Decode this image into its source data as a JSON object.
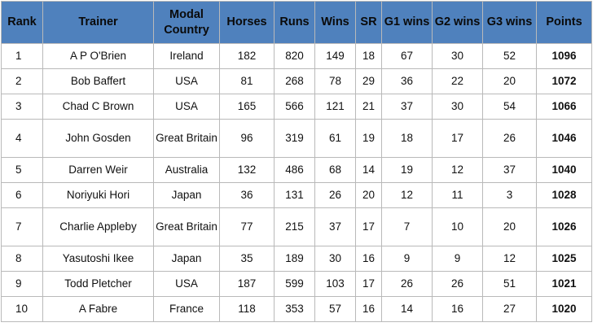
{
  "table": {
    "headers": {
      "rank": "Rank",
      "trainer": "Trainer",
      "country": "Modal Country",
      "horses": "Horses",
      "runs": "Runs",
      "wins": "Wins",
      "sr": "SR",
      "g1": "G1 wins",
      "g2": "G2 wins",
      "g3": "G3 wins",
      "points": "Points"
    },
    "rows": [
      {
        "rank": "1",
        "trainer": "A P O'Brien",
        "country": "Ireland",
        "horses": "182",
        "runs": "820",
        "wins": "149",
        "sr": "18",
        "g1": "67",
        "g2": "30",
        "g3": "52",
        "points": "1096"
      },
      {
        "rank": "2",
        "trainer": "Bob Baffert",
        "country": "USA",
        "horses": "81",
        "runs": "268",
        "wins": "78",
        "sr": "29",
        "g1": "36",
        "g2": "22",
        "g3": "20",
        "points": "1072"
      },
      {
        "rank": "3",
        "trainer": "Chad C Brown",
        "country": "USA",
        "horses": "165",
        "runs": "566",
        "wins": "121",
        "sr": "21",
        "g1": "37",
        "g2": "30",
        "g3": "54",
        "points": "1066"
      },
      {
        "rank": "4",
        "trainer": "John Gosden",
        "country": "Great Britain",
        "horses": "96",
        "runs": "319",
        "wins": "61",
        "sr": "19",
        "g1": "18",
        "g2": "17",
        "g3": "26",
        "points": "1046"
      },
      {
        "rank": "5",
        "trainer": "Darren Weir",
        "country": "Australia",
        "horses": "132",
        "runs": "486",
        "wins": "68",
        "sr": "14",
        "g1": "19",
        "g2": "12",
        "g3": "37",
        "points": "1040"
      },
      {
        "rank": "6",
        "trainer": "Noriyuki Hori",
        "country": "Japan",
        "horses": "36",
        "runs": "131",
        "wins": "26",
        "sr": "20",
        "g1": "12",
        "g2": "11",
        "g3": "3",
        "points": "1028"
      },
      {
        "rank": "7",
        "trainer": "Charlie Appleby",
        "country": "Great Britain",
        "horses": "77",
        "runs": "215",
        "wins": "37",
        "sr": "17",
        "g1": "7",
        "g2": "10",
        "g3": "20",
        "points": "1026"
      },
      {
        "rank": "8",
        "trainer": "Yasutoshi Ikee",
        "country": "Japan",
        "horses": "35",
        "runs": "189",
        "wins": "30",
        "sr": "16",
        "g1": "9",
        "g2": "9",
        "g3": "12",
        "points": "1025"
      },
      {
        "rank": "9",
        "trainer": "Todd Pletcher",
        "country": "USA",
        "horses": "187",
        "runs": "599",
        "wins": "103",
        "sr": "17",
        "g1": "26",
        "g2": "26",
        "g3": "51",
        "points": "1021"
      },
      {
        "rank": "10",
        "trainer": "A Fabre",
        "country": "France",
        "horses": "118",
        "runs": "353",
        "wins": "57",
        "sr": "16",
        "g1": "14",
        "g2": "16",
        "g3": "27",
        "points": "1020"
      }
    ]
  }
}
